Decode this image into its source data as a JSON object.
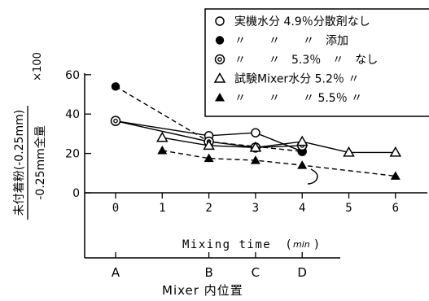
{
  "chart_data": {
    "type": "line",
    "xlabel": "Mixing time",
    "xunit": "min",
    "x_ticks": [
      "0",
      "1",
      "2",
      "3",
      "4",
      "5",
      "6"
    ],
    "xlim": [
      0,
      6
    ],
    "ylim": [
      0,
      60
    ],
    "y_ticks": [
      "0",
      "20",
      "40",
      "60"
    ],
    "ylabel_main": "未付着粉(-0.25mm)",
    "ylabel_denominator": "-0.25mm全量",
    "ylabel_multiplier": "×100",
    "secondary_axis": {
      "label": "Mixer 内位置",
      "positions": [
        {
          "label": "A",
          "x": 0
        },
        {
          "label": "B",
          "x": 2
        },
        {
          "label": "C",
          "x": 3
        },
        {
          "label": "D",
          "x": 4
        }
      ]
    },
    "legend": [
      {
        "text": "実機水分 4.9％分散剤なし"
      },
      {
        "text": "〃　　〃　　〃　添加"
      },
      {
        "text": "〃　　〃　5.3％　〃　なし"
      },
      {
        "text": "試験Mixer水分 5.2％ 〃"
      },
      {
        "text": "〃　　〃　　〃 5.5％ 〃"
      }
    ],
    "series": [
      {
        "marker": "open-circle",
        "dash": false,
        "x": [
          0,
          2,
          3,
          4
        ],
        "y": [
          36.5,
          29,
          30.5,
          21
        ]
      },
      {
        "marker": "filled-circle",
        "dash": true,
        "x": [
          0,
          2,
          4
        ],
        "y": [
          54,
          26,
          21
        ]
      },
      {
        "marker": "double-circle",
        "dash": false,
        "x": [
          0,
          2,
          3,
          4
        ],
        "y": [
          36.5,
          26,
          23,
          24
        ]
      },
      {
        "marker": "open-triangle",
        "dash": false,
        "x": [
          1,
          2,
          3,
          4,
          5,
          6
        ],
        "y": [
          28,
          24,
          23,
          26,
          20.5,
          20.5
        ]
      },
      {
        "marker": "filled-triangle",
        "dash": true,
        "x": [
          1,
          2,
          3,
          4,
          6
        ],
        "y": [
          21.5,
          17.5,
          16.5,
          14,
          8.5
        ]
      }
    ]
  }
}
